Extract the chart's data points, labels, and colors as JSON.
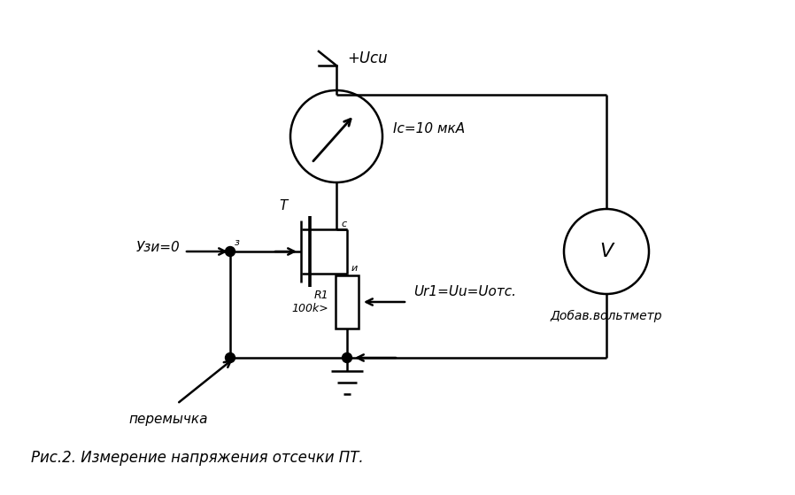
{
  "bg_color": "#ffffff",
  "line_color": "#000000",
  "line_width": 1.8,
  "fig_width": 8.98,
  "fig_height": 5.59,
  "caption": "Рис.2. Измерение напряжения отсечки ПТ.",
  "label_uzero": "Узи=0",
  "label_uci": "+Ucu",
  "label_ic": "Ic=10 мкА",
  "label_ur": "Ur1=Uu=Uотс.",
  "label_r1": "R1\n100k>",
  "label_peremychka": "перемычка",
  "label_voltmeter": "Добав.вольтметр",
  "label_T": "T",
  "label_z": "з",
  "label_s": "с",
  "label_i": "и"
}
